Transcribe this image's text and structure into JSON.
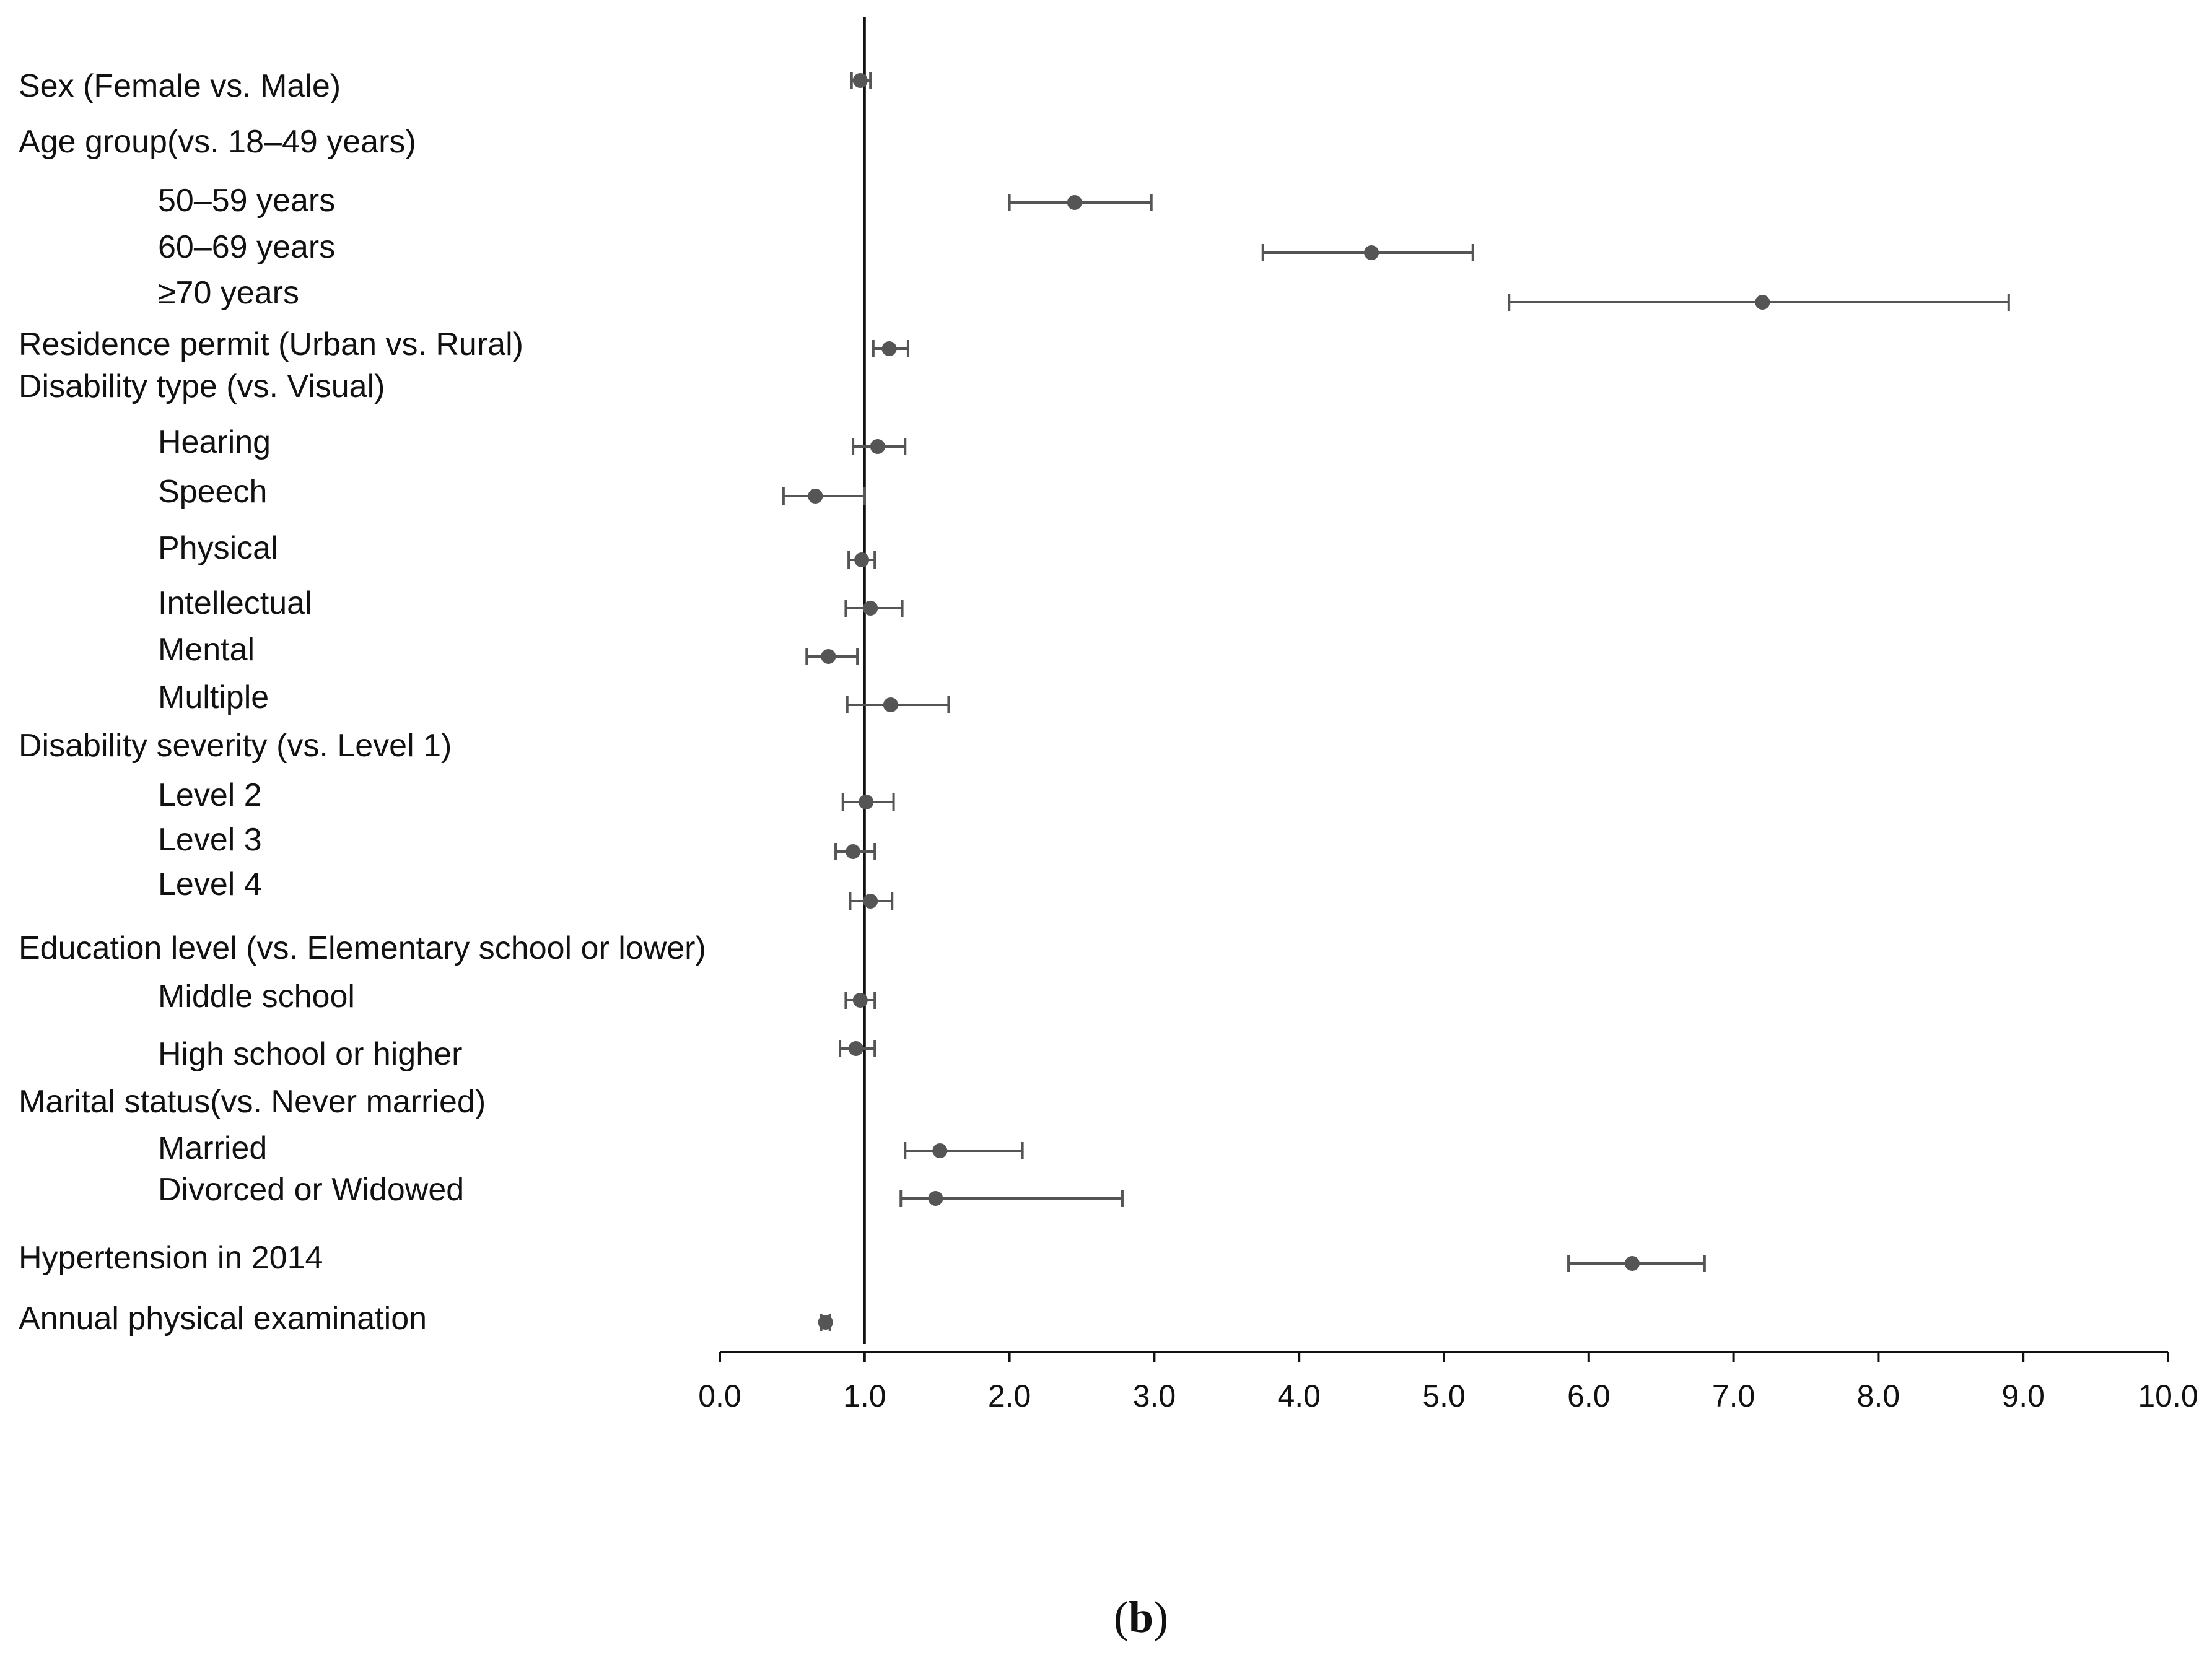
{
  "colors": {
    "axis": "#111111",
    "marker": "#555555",
    "whisker": "#555555",
    "text": "#111111"
  },
  "panel_label": {
    "open": "(",
    "letter": "b",
    "close": ")"
  },
  "chart_data": {
    "type": "scatter",
    "style": "forest plot (point estimates with 95% confidence intervals)",
    "title": "",
    "xlabel": "",
    "ylabel": "",
    "xlim": [
      0.0,
      10.0
    ],
    "x_ticks": [
      0.0,
      1.0,
      2.0,
      3.0,
      4.0,
      5.0,
      6.0,
      7.0,
      8.0,
      9.0,
      10.0
    ],
    "x_tick_labels": [
      "0.0",
      "1.0",
      "2.0",
      "3.0",
      "4.0",
      "5.0",
      "6.0",
      "7.0",
      "8.0",
      "9.0",
      "10.0"
    ],
    "reference_line": 1.0,
    "grid": false,
    "legend": "none",
    "rows": [
      {
        "label": "Sex (Female vs. Male)",
        "level": 0,
        "estimate": 0.97,
        "lower": 0.91,
        "upper": 1.04
      },
      {
        "label": "Age group(vs. 18–49 years)",
        "level": 0
      },
      {
        "label": "50–59 years",
        "level": 1,
        "estimate": 2.45,
        "lower": 2.0,
        "upper": 2.98
      },
      {
        "label": "60–69 years",
        "level": 1,
        "estimate": 4.5,
        "lower": 3.75,
        "upper": 5.2
      },
      {
        "label": "≥70 years",
        "level": 1,
        "estimate": 7.2,
        "lower": 5.45,
        "upper": 8.9
      },
      {
        "label": "Residence permit (Urban vs. Rural)",
        "level": 0,
        "estimate": 1.17,
        "lower": 1.06,
        "upper": 1.3
      },
      {
        "label": "Disability type (vs. Visual)",
        "level": 0
      },
      {
        "label": "Hearing",
        "level": 1,
        "estimate": 1.09,
        "lower": 0.92,
        "upper": 1.28
      },
      {
        "label": "Speech",
        "level": 1,
        "estimate": 0.66,
        "lower": 0.44,
        "upper": 1.0
      },
      {
        "label": "Physical",
        "level": 1,
        "estimate": 0.98,
        "lower": 0.89,
        "upper": 1.07
      },
      {
        "label": "Intellectual",
        "level": 1,
        "estimate": 1.04,
        "lower": 0.87,
        "upper": 1.26
      },
      {
        "label": "Mental",
        "level": 1,
        "estimate": 0.75,
        "lower": 0.6,
        "upper": 0.95
      },
      {
        "label": "Multiple",
        "level": 1,
        "estimate": 1.18,
        "lower": 0.88,
        "upper": 1.58
      },
      {
        "label": "Disability severity (vs. Level 1)",
        "level": 0
      },
      {
        "label": "Level 2",
        "level": 1,
        "estimate": 1.01,
        "lower": 0.85,
        "upper": 1.2
      },
      {
        "label": "Level 3",
        "level": 1,
        "estimate": 0.92,
        "lower": 0.8,
        "upper": 1.07
      },
      {
        "label": "Level 4",
        "level": 1,
        "estimate": 1.04,
        "lower": 0.9,
        "upper": 1.19
      },
      {
        "label": "Education level (vs. Elementary school or lower)",
        "level": 0
      },
      {
        "label": "Middle school",
        "level": 1,
        "estimate": 0.97,
        "lower": 0.87,
        "upper": 1.07
      },
      {
        "label": "High school or higher",
        "level": 1,
        "estimate": 0.94,
        "lower": 0.83,
        "upper": 1.07
      },
      {
        "label": "Marital status(vs. Never married)",
        "level": 0
      },
      {
        "label": "Married",
        "level": 1,
        "estimate": 1.52,
        "lower": 1.28,
        "upper": 2.09
      },
      {
        "label": "Divorced  or Widowed",
        "level": 1,
        "estimate": 1.49,
        "lower": 1.25,
        "upper": 2.78
      },
      {
        "label": "Hypertension in 2014",
        "level": 0,
        "estimate": 6.3,
        "lower": 5.86,
        "upper": 6.8
      },
      {
        "label": "Annual physical examination",
        "level": 0,
        "estimate": 0.73,
        "lower": 0.7,
        "upper": 0.76
      }
    ]
  }
}
